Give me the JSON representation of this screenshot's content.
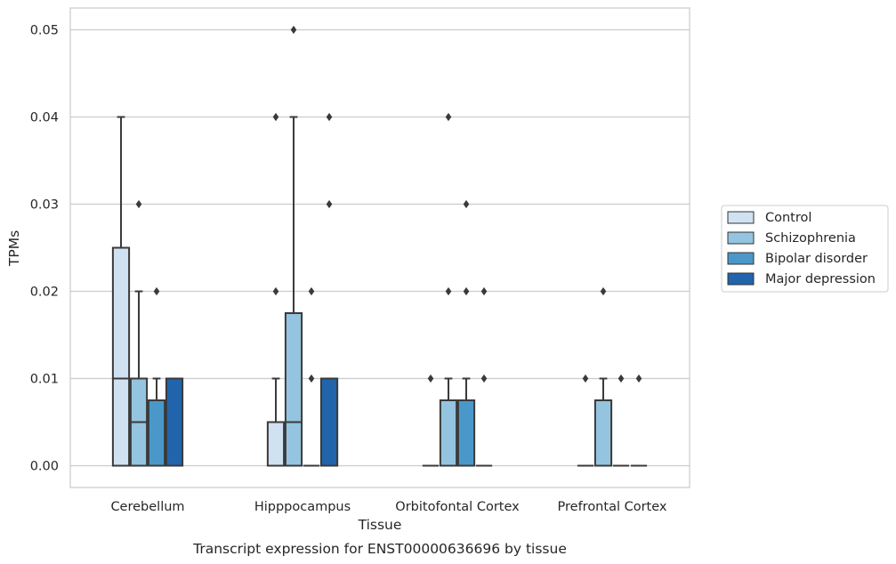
{
  "chart_data": {
    "type": "box",
    "title": "",
    "caption": "Transcript expression for ENST00000636696 by tissue",
    "xlabel": "Tissue",
    "ylabel": "TPMs",
    "ylim": [
      -0.0025,
      0.0525
    ],
    "yticks": [
      0.0,
      0.01,
      0.02,
      0.03,
      0.04,
      0.05
    ],
    "ytick_labels": [
      "0.00",
      "0.01",
      "0.02",
      "0.03",
      "0.04",
      "0.05"
    ],
    "grid": "horizontal",
    "legend_position": "right",
    "categories": [
      "Cerebellum",
      "Hipppocampus",
      "Orbitofontal Cortex",
      "Prefrontal Cortex"
    ],
    "series": [
      {
        "name": "Control",
        "color": "#d0e1f2",
        "boxes": [
          {
            "min": 0.0,
            "q1": 0.0,
            "median": 0.01,
            "q3": 0.025,
            "max": 0.04,
            "outliers": []
          },
          {
            "min": 0.0,
            "q1": 0.0,
            "median": 0.005,
            "q3": 0.005,
            "max": 0.01,
            "outliers": [
              0.02,
              0.04
            ]
          },
          {
            "min": 0.0,
            "q1": 0.0,
            "median": 0.0,
            "q3": 0.0,
            "max": 0.0,
            "outliers": [
              0.01
            ]
          },
          {
            "min": 0.0,
            "q1": 0.0,
            "median": 0.0,
            "q3": 0.0,
            "max": 0.0,
            "outliers": [
              0.01
            ]
          }
        ]
      },
      {
        "name": "Schizophrenia",
        "color": "#94c4df",
        "boxes": [
          {
            "min": 0.0,
            "q1": 0.0,
            "median": 0.005,
            "q3": 0.01,
            "max": 0.02,
            "outliers": [
              0.03
            ]
          },
          {
            "min": 0.0,
            "q1": 0.0,
            "median": 0.005,
            "q3": 0.0175,
            "max": 0.04,
            "outliers": [
              0.05
            ]
          },
          {
            "min": 0.0,
            "q1": 0.0,
            "median": 0.0,
            "q3": 0.0075,
            "max": 0.01,
            "outliers": [
              0.02,
              0.04
            ]
          },
          {
            "min": 0.0,
            "q1": 0.0,
            "median": 0.0,
            "q3": 0.0075,
            "max": 0.01,
            "outliers": [
              0.02
            ]
          }
        ]
      },
      {
        "name": "Bipolar disorder",
        "color": "#4a98c9",
        "boxes": [
          {
            "min": 0.0,
            "q1": 0.0,
            "median": 0.0,
            "q3": 0.0075,
            "max": 0.01,
            "outliers": [
              0.02
            ]
          },
          {
            "min": 0.0,
            "q1": 0.0,
            "median": 0.0,
            "q3": 0.0,
            "max": 0.0,
            "outliers": [
              0.01,
              0.02
            ]
          },
          {
            "min": 0.0,
            "q1": 0.0,
            "median": 0.0,
            "q3": 0.0075,
            "max": 0.01,
            "outliers": [
              0.02,
              0.03
            ]
          },
          {
            "min": 0.0,
            "q1": 0.0,
            "median": 0.0,
            "q3": 0.0,
            "max": 0.0,
            "outliers": [
              0.01
            ]
          }
        ]
      },
      {
        "name": "Major depression",
        "color": "#2164ab",
        "boxes": [
          {
            "min": 0.0,
            "q1": 0.0,
            "median": 0.0,
            "q3": 0.01,
            "max": 0.01,
            "outliers": []
          },
          {
            "min": 0.0,
            "q1": 0.0,
            "median": 0.0,
            "q3": 0.01,
            "max": 0.01,
            "outliers": [
              0.03,
              0.04
            ]
          },
          {
            "min": 0.0,
            "q1": 0.0,
            "median": 0.0,
            "q3": 0.0,
            "max": 0.0,
            "outliers": [
              0.01,
              0.02
            ]
          },
          {
            "min": 0.0,
            "q1": 0.0,
            "median": 0.0,
            "q3": 0.0,
            "max": 0.0,
            "outliers": [
              0.01
            ]
          }
        ]
      }
    ]
  }
}
